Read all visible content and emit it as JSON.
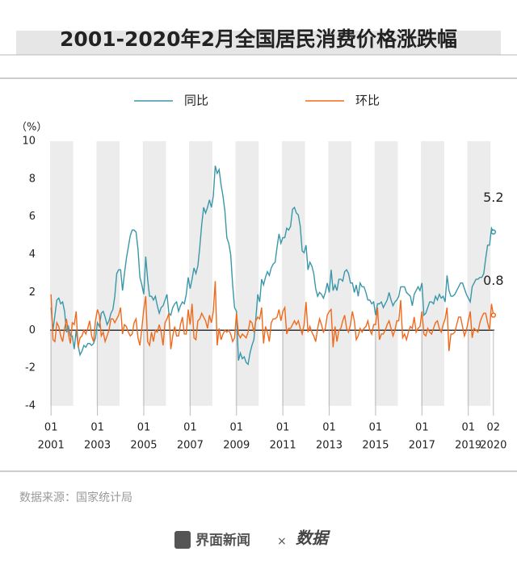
{
  "chart_data": {
    "type": "line",
    "title": "2001-2020年2月全国居民消费价格涨跌幅",
    "y_unit": "（%）",
    "source": "数据来源：国家统计局",
    "brand": "界面新闻",
    "brand_separator": "×",
    "partner": "数据",
    "ylim": [
      -4,
      10
    ],
    "yticks": [
      -4,
      -2,
      0,
      2,
      4,
      6,
      8,
      10
    ],
    "bands": true,
    "legend": "top",
    "categories": [
      [
        "01",
        "2001"
      ],
      null,
      null,
      null,
      null,
      null,
      null,
      null,
      null,
      null,
      null,
      null,
      null,
      null,
      null,
      null,
      null,
      null,
      null,
      null,
      null,
      null,
      null,
      null,
      [
        "01",
        "2003"
      ],
      null,
      null,
      null,
      null,
      null,
      null,
      null,
      null,
      null,
      null,
      null,
      null,
      null,
      null,
      null,
      null,
      null,
      null,
      null,
      null,
      null,
      null,
      null,
      [
        "01",
        "2005"
      ],
      null,
      null,
      null,
      null,
      null,
      null,
      null,
      null,
      null,
      null,
      null,
      null,
      null,
      null,
      null,
      null,
      null,
      null,
      null,
      null,
      null,
      null,
      null,
      [
        "01",
        "2007"
      ],
      null,
      null,
      null,
      null,
      null,
      null,
      null,
      null,
      null,
      null,
      null,
      null,
      null,
      null,
      null,
      null,
      null,
      null,
      null,
      null,
      null,
      null,
      null,
      [
        "01",
        "2009"
      ],
      null,
      null,
      null,
      null,
      null,
      null,
      null,
      null,
      null,
      null,
      null,
      null,
      null,
      null,
      null,
      null,
      null,
      null,
      null,
      null,
      null,
      null,
      null,
      [
        "01",
        "2011"
      ],
      null,
      null,
      null,
      null,
      null,
      null,
      null,
      null,
      null,
      null,
      null,
      null,
      null,
      null,
      null,
      null,
      null,
      null,
      null,
      null,
      null,
      null,
      null,
      [
        "01",
        "2013"
      ],
      null,
      null,
      null,
      null,
      null,
      null,
      null,
      null,
      null,
      null,
      null,
      null,
      null,
      null,
      null,
      null,
      null,
      null,
      null,
      null,
      null,
      null,
      null,
      [
        "01",
        "2015"
      ],
      null,
      null,
      null,
      null,
      null,
      null,
      null,
      null,
      null,
      null,
      null,
      null,
      null,
      null,
      null,
      null,
      null,
      null,
      null,
      null,
      null,
      null,
      null,
      [
        "01",
        "2017"
      ],
      null,
      null,
      null,
      null,
      null,
      null,
      null,
      null,
      null,
      null,
      null,
      null,
      null,
      null,
      null,
      null,
      null,
      null,
      null,
      null,
      null,
      null,
      null,
      [
        "01",
        "2019"
      ],
      null,
      null,
      null,
      null,
      null,
      null,
      null,
      null,
      null,
      null,
      null,
      null,
      [
        "02",
        "2020"
      ]
    ],
    "series": [
      {
        "name": "同比",
        "color": "#3a97a8",
        "values": [
          1.2,
          0.0,
          0.8,
          1.6,
          1.7,
          1.4,
          1.5,
          1.0,
          -0.1,
          0.2,
          -0.3,
          -0.3,
          -1.0,
          0.0,
          -0.8,
          -1.3,
          -1.1,
          -0.8,
          -0.9,
          -0.7,
          -0.7,
          -0.8,
          -0.7,
          -0.4,
          0.4,
          0.2,
          0.9,
          1.0,
          0.7,
          0.3,
          0.5,
          0.9,
          1.1,
          1.8,
          3.0,
          3.2,
          3.2,
          2.1,
          3.0,
          3.8,
          4.4,
          5.0,
          5.3,
          5.3,
          5.2,
          4.3,
          2.8,
          2.4,
          1.9,
          3.9,
          2.7,
          1.8,
          1.8,
          1.6,
          1.8,
          1.3,
          0.9,
          1.2,
          1.3,
          1.6,
          1.9,
          0.9,
          0.8,
          1.2,
          1.4,
          1.5,
          1.0,
          1.3,
          1.5,
          1.4,
          1.9,
          2.8,
          2.2,
          2.7,
          3.3,
          3.0,
          3.4,
          4.4,
          5.6,
          6.5,
          6.2,
          6.5,
          6.9,
          6.5,
          7.1,
          8.7,
          8.3,
          8.5,
          7.7,
          7.1,
          6.3,
          4.9,
          4.6,
          4.0,
          2.4,
          1.2,
          1.0,
          -1.6,
          -1.2,
          -1.5,
          -1.4,
          -1.7,
          -1.8,
          -1.2,
          -0.8,
          -0.5,
          0.6,
          1.9,
          1.5,
          2.7,
          2.4,
          2.8,
          3.1,
          2.9,
          3.3,
          3.5,
          3.6,
          4.4,
          5.1,
          4.6,
          4.9,
          4.9,
          5.4,
          5.3,
          5.5,
          6.4,
          6.5,
          6.2,
          6.1,
          5.5,
          4.2,
          4.1,
          4.5,
          3.2,
          3.6,
          3.4,
          3.0,
          2.2,
          1.8,
          2.0,
          1.9,
          1.7,
          2.0,
          2.5,
          2.0,
          3.2,
          2.1,
          2.4,
          2.1,
          2.7,
          2.7,
          2.6,
          3.1,
          3.2,
          3.0,
          2.5,
          2.5,
          2.0,
          2.4,
          1.8,
          2.5,
          2.3,
          2.3,
          2.0,
          1.6,
          1.6,
          1.4,
          1.5,
          0.8,
          1.4,
          1.4,
          1.5,
          1.2,
          1.4,
          1.6,
          2.0,
          1.6,
          1.3,
          1.5,
          1.6,
          1.8,
          2.3,
          2.3,
          2.3,
          2.0,
          1.9,
          1.8,
          1.3,
          1.9,
          2.1,
          2.3,
          2.1,
          2.5,
          0.8,
          0.9,
          1.2,
          1.5,
          1.5,
          1.4,
          1.8,
          1.6,
          1.9,
          1.7,
          1.8,
          1.5,
          2.9,
          2.1,
          1.8,
          1.8,
          1.9,
          2.1,
          2.3,
          2.5,
          2.5,
          2.2,
          1.9,
          1.7,
          1.5,
          2.3,
          2.5,
          2.7,
          2.7,
          2.8,
          2.8,
          3.0,
          3.8,
          4.5,
          4.5,
          5.4,
          5.2
        ]
      },
      {
        "name": "环比",
        "color": "#f06a1c",
        "values": [
          1.9,
          -0.5,
          -0.6,
          0.4,
          0.2,
          -0.3,
          -0.6,
          0.1,
          0.6,
          -0.2,
          -0.7,
          0.4,
          0.3,
          1.0,
          -0.9,
          -0.4,
          -0.3,
          0.0,
          -0.2,
          0.1,
          0.5,
          -0.3,
          -0.6,
          0.5,
          1.1,
          0.8,
          -0.3,
          -0.1,
          -0.6,
          -0.3,
          0.0,
          0.6,
          0.6,
          0.4,
          0.6,
          0.8,
          1.2,
          -0.2,
          0.3,
          0.2,
          -0.1,
          -0.3,
          -0.2,
          0.4,
          0.6,
          -0.4,
          -0.8,
          0.1,
          1.1,
          1.8,
          -0.6,
          -0.8,
          -0.1,
          -0.6,
          0.0,
          -0.1,
          0.3,
          -0.1,
          -0.8,
          0.4,
          0.6,
          0.9,
          -1.0,
          -0.3,
          0.2,
          -0.3,
          -0.3,
          0.3,
          0.7,
          -0.2,
          -0.2,
          1.1,
          0.3,
          1.4,
          -0.4,
          -0.5,
          0.5,
          0.6,
          0.9,
          0.7,
          0.5,
          0.1,
          0.8,
          0.4,
          1.0,
          2.6,
          -0.8,
          0.1,
          -0.5,
          -0.2,
          0.0,
          -0.1,
          0.0,
          -0.2,
          -0.6,
          -0.4,
          0.9,
          -0.2,
          -0.4,
          -0.2,
          -0.3,
          -0.4,
          -0.1,
          0.5,
          0.4,
          -0.1,
          0.5,
          0.7,
          0.6,
          1.2,
          -0.7,
          0.2,
          -0.1,
          -0.6,
          0.4,
          0.6,
          0.6,
          0.7,
          1.1,
          0.5,
          1.0,
          1.2,
          -0.2,
          0.1,
          0.1,
          0.3,
          0.5,
          0.3,
          0.5,
          0.1,
          -0.2,
          0.3,
          1.5,
          -0.1,
          0.2,
          -0.1,
          -0.3,
          -0.6,
          0.1,
          0.6,
          0.3,
          -0.1,
          0.1,
          0.8,
          1.0,
          1.1,
          -0.9,
          0.2,
          -0.6,
          0.0,
          0.1,
          0.5,
          0.8,
          0.1,
          -0.1,
          0.3,
          1.0,
          0.5,
          -0.5,
          -0.3,
          0.1,
          -0.1,
          0.1,
          0.2,
          0.5,
          0.0,
          -0.2,
          0.3,
          0.3,
          1.2,
          -0.5,
          -0.2,
          -0.2,
          0.0,
          0.3,
          0.5,
          0.1,
          -0.3,
          0.0,
          0.5,
          0.5,
          1.6,
          -0.4,
          -0.2,
          -0.5,
          -0.1,
          0.2,
          0.1,
          0.7,
          -0.1,
          0.1,
          0.2,
          1.0,
          -0.2,
          -0.3,
          0.1,
          -0.1,
          -0.2,
          0.1,
          0.4,
          0.5,
          0.1,
          -0.1,
          0.3,
          0.6,
          1.2,
          -1.1,
          -0.2,
          -0.2,
          -0.1,
          0.3,
          0.7,
          0.7,
          0.2,
          -0.3,
          0.0,
          0.5,
          1.0,
          -0.4,
          0.1,
          0.0,
          -0.1,
          0.4,
          0.7,
          0.9,
          0.9,
          0.4,
          0.0,
          1.4,
          0.8
        ]
      }
    ]
  }
}
